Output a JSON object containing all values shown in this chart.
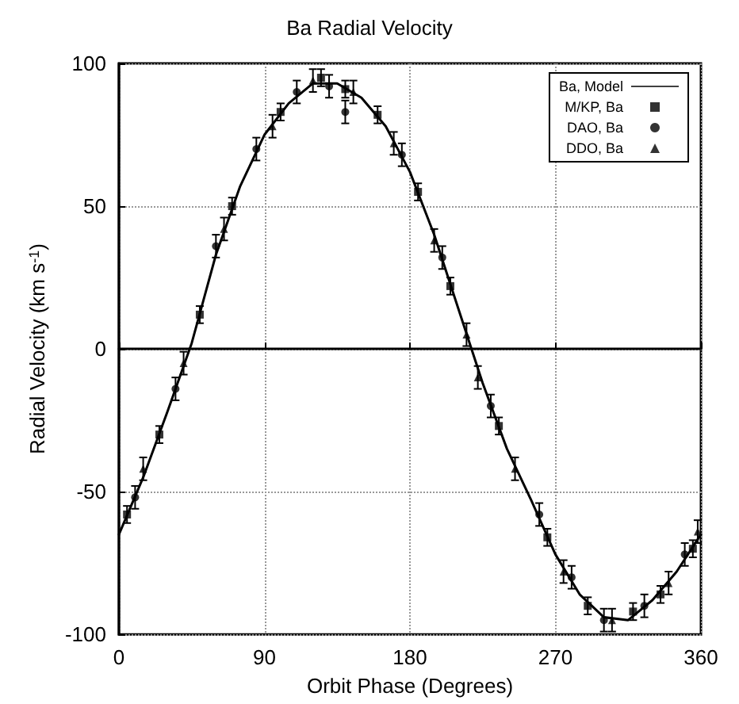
{
  "chart_data": {
    "type": "scatter",
    "title": "Ba Radial Velocity",
    "xlabel": "Orbit Phase (Degrees)",
    "ylabel": "Radial Velocity (km s$^{-1}$)",
    "xlim": [
      0,
      360
    ],
    "ylim": [
      -100,
      100
    ],
    "xticks": [
      0,
      90,
      180,
      270,
      360
    ],
    "yticks": [
      -100,
      -50,
      0,
      50,
      100
    ],
    "grid": true,
    "legend": "top right",
    "series": [
      {
        "name": "Ba, Model",
        "type": "line",
        "color": "#000000",
        "marker": "none",
        "line_style": "solid",
        "x": [
          0,
          15,
          30,
          45,
          60,
          75,
          90,
          105,
          120,
          135,
          150,
          165,
          180,
          195,
          210,
          225,
          240,
          255,
          270,
          285,
          300,
          315,
          330,
          345,
          360
        ],
        "values": [
          -65,
          -45,
          -22,
          2,
          33,
          57,
          75,
          86,
          93,
          93,
          88,
          78,
          62,
          40,
          14,
          -12,
          -35,
          -53,
          -72,
          -86,
          -94,
          -95,
          -88,
          -78,
          -65
        ]
      },
      {
        "name": "M/KP, Ba",
        "color": "#000000",
        "marker": "square",
        "x": [
          5,
          25,
          50,
          70,
          100,
          125,
          140,
          160,
          185,
          205,
          235,
          265,
          290,
          318,
          335,
          355
        ],
        "values": [
          -58,
          -30,
          12,
          50,
          83,
          95,
          91,
          82,
          55,
          22,
          -27,
          -66,
          -90,
          -92,
          -86,
          -70
        ],
        "errors": [
          3,
          3,
          3,
          3,
          3,
          3,
          3,
          3,
          3,
          3,
          3,
          3,
          3,
          3,
          3,
          3
        ]
      },
      {
        "name": "DAO, Ba",
        "color": "#000000",
        "marker": "circle",
        "x": [
          10,
          35,
          60,
          85,
          110,
          130,
          140,
          175,
          200,
          230,
          260,
          280,
          300,
          325,
          350
        ],
        "values": [
          -52,
          -14,
          36,
          70,
          90,
          92,
          83,
          68,
          32,
          -20,
          -58,
          -80,
          -95,
          -90,
          -72
        ],
        "errors": [
          4,
          4,
          4,
          4,
          4,
          4,
          4,
          4,
          4,
          4,
          4,
          4,
          4,
          4,
          4
        ]
      },
      {
        "name": "DDO, Ba",
        "color": "#000000",
        "marker": "triangle",
        "x": [
          15,
          40,
          65,
          95,
          120,
          145,
          170,
          195,
          215,
          222,
          245,
          275,
          305,
          340,
          358
        ],
        "values": [
          -42,
          -5,
          42,
          78,
          94,
          90,
          72,
          38,
          5,
          -10,
          -42,
          -78,
          -95,
          -82,
          -64
        ],
        "errors": [
          4,
          4,
          4,
          4,
          4,
          4,
          4,
          4,
          4,
          4,
          4,
          4,
          4,
          4,
          4
        ]
      }
    ]
  }
}
